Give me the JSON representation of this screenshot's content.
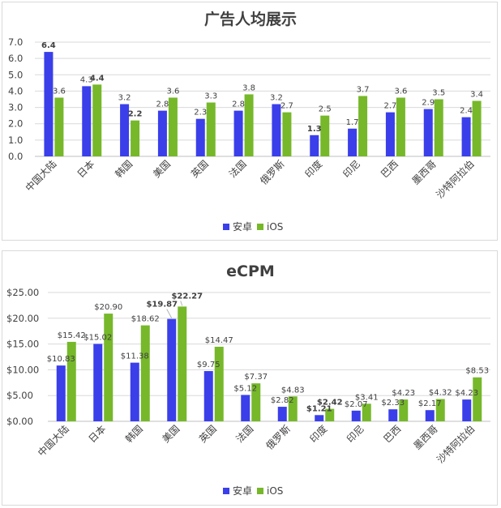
{
  "colors": {
    "android": "#3a3fea",
    "ios": "#76b82a"
  },
  "chart_data": [
    {
      "type": "bar",
      "title": "广告人均展示",
      "categories": [
        "中国大陆",
        "日本",
        "韩国",
        "美国",
        "英国",
        "法国",
        "俄罗斯",
        "印度",
        "印尼",
        "巴西",
        "墨西哥",
        "沙特阿拉伯"
      ],
      "ylim": [
        0,
        7
      ],
      "yticks": [
        "0.0",
        "1.0",
        "2.0",
        "3.0",
        "4.0",
        "5.0",
        "6.0",
        "7.0"
      ],
      "grid": true,
      "legend_position": "bottom",
      "series": [
        {
          "name": "安卓",
          "values": [
            6.4,
            4.3,
            3.2,
            2.8,
            2.3,
            2.8,
            3.2,
            1.3,
            1.7,
            2.7,
            2.9,
            2.4
          ],
          "labels": [
            "6.4",
            "4.3",
            "3.2",
            "2.8",
            "2.3",
            "2.8",
            "3.2",
            "1.3",
            "1.7",
            "2.7",
            "2.9",
            "2.4"
          ]
        },
        {
          "name": "iOS",
          "values": [
            3.6,
            4.4,
            2.2,
            3.6,
            3.3,
            3.8,
            2.7,
            2.5,
            3.7,
            3.6,
            3.5,
            3.4
          ],
          "labels": [
            "3.6",
            "4.4",
            "2.2",
            "3.6",
            "3.3",
            "3.8",
            "2.7",
            "2.5",
            "3.7",
            "3.6",
            "3.5",
            "3.4"
          ]
        }
      ]
    },
    {
      "type": "bar",
      "title": "eCPM",
      "categories": [
        "中国大陆",
        "日本",
        "韩国",
        "美国",
        "英国",
        "法国",
        "俄罗斯",
        "印度",
        "印尼",
        "巴西",
        "墨西哥",
        "沙特阿拉伯"
      ],
      "ylim": [
        0,
        25
      ],
      "yticks": [
        "$0.00",
        "$5.00",
        "$10.00",
        "$15.00",
        "$20.00",
        "$25.00"
      ],
      "grid": true,
      "legend_position": "bottom",
      "series": [
        {
          "name": "安卓",
          "values": [
            10.83,
            15.02,
            11.38,
            19.87,
            9.75,
            5.12,
            2.82,
            1.21,
            2.07,
            2.33,
            2.17,
            4.23
          ],
          "labels": [
            "$10.83",
            "$15.02",
            "$11.38",
            "$19.87",
            "$9.75",
            "$5.12",
            "$2.82",
            "$1.21",
            "$2.07",
            "$2.33",
            "$2.17",
            "$4.23"
          ]
        },
        {
          "name": "iOS",
          "values": [
            15.42,
            20.9,
            18.62,
            22.27,
            14.47,
            7.37,
            4.83,
            2.42,
            3.41,
            4.23,
            4.32,
            8.53
          ],
          "labels": [
            "$15.42",
            "$20.90",
            "$18.62",
            "$22.27",
            "$14.47",
            "$7.37",
            "$4.83",
            "$2.42",
            "$3.41",
            "$4.23",
            "$4.32",
            "$8.53"
          ]
        }
      ]
    }
  ]
}
